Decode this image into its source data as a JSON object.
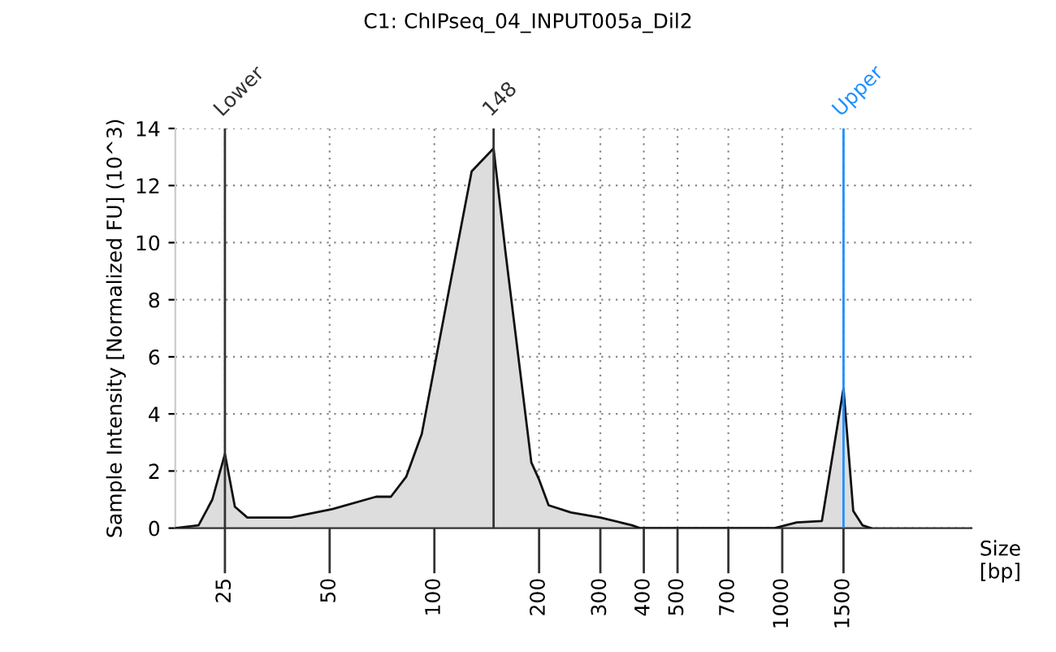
{
  "chart_data": {
    "type": "area",
    "title": "C1: ChIPseq_04_INPUT005a_Dil2",
    "xlabel": "Size\n[bp]",
    "ylabel": "Sample Intensity [Normalized FU] (10^3)",
    "log": "x",
    "series": [
      {
        "color": "#dddddd",
        "x": [
          18,
          21,
          23,
          25,
          26.7,
          29,
          38.6,
          51,
          68,
          75,
          83,
          92,
          110,
          128,
          148,
          160,
          190,
          200,
          213,
          247,
          300,
          370,
          390,
          560,
          950,
          1100,
          1300,
          1500,
          1600,
          1700,
          1800
        ],
        "values": [
          0.0,
          0.1,
          1.0,
          2.6,
          0.75,
          0.37,
          0.37,
          0.67,
          1.1,
          1.1,
          1.8,
          3.3,
          8.3,
          12.5,
          13.3,
          9.7,
          2.3,
          1.7,
          0.8,
          0.55,
          0.37,
          0.1,
          0.0,
          0.0,
          0.0,
          0.2,
          0.25,
          4.9,
          0.6,
          0.1,
          0.0
        ]
      }
    ],
    "xlim": [
      18,
      3500
    ],
    "ylim": [
      0,
      14
    ],
    "xticks": [
      25,
      50,
      100,
      200,
      300,
      400,
      500,
      700,
      1000,
      1500
    ],
    "yticks": [
      0,
      2,
      4,
      6,
      8,
      10,
      12,
      14
    ],
    "grid": true,
    "ref_lines": [
      {
        "axis": "x",
        "value": 25,
        "label": "Lower",
        "color": "#333333"
      },
      {
        "axis": "x",
        "value": 148,
        "label": "148",
        "color": "#333333"
      },
      {
        "axis": "x",
        "value": 1500,
        "label": "Upper",
        "color": "#1e90ff"
      }
    ]
  }
}
